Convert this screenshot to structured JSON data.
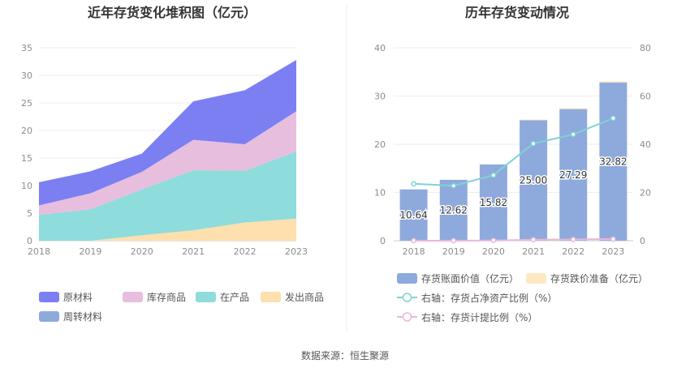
{
  "source": "数据来源：恒生聚源",
  "chart_data": [
    {
      "type": "area",
      "title": "近年存货变化堆积图（亿元）",
      "x": [
        "2018",
        "2019",
        "2020",
        "2021",
        "2022",
        "2023"
      ],
      "ylim": [
        0,
        35
      ],
      "yticks": [
        "0",
        "5",
        "10",
        "15",
        "20",
        "25",
        "30",
        "35"
      ],
      "stacked": true,
      "grid": true,
      "legend_position": "bottom",
      "series": [
        {
          "name": "原材料",
          "color": "#7b7ff2",
          "values": [
            4.2,
            4.0,
            3.3,
            7.0,
            9.8,
            9.3
          ]
        },
        {
          "name": "库存商品",
          "color": "#e8bede",
          "values": [
            1.7,
            2.9,
            3.2,
            5.5,
            4.8,
            7.3
          ]
        },
        {
          "name": "在产品",
          "color": "#8edcdc",
          "values": [
            4.7,
            5.7,
            8.3,
            10.9,
            9.4,
            12.2
          ]
        },
        {
          "name": "发出商品",
          "color": "#fde0ad",
          "values": [
            0,
            0,
            1.0,
            1.9,
            3.3,
            4.0
          ]
        },
        {
          "name": "周转材料",
          "color": "#8eaadc",
          "values": [
            0,
            0,
            0,
            0,
            0,
            0
          ]
        }
      ]
    },
    {
      "type": "bar",
      "title": "历年存货变动情况",
      "categories": [
        "2018",
        "2019",
        "2020",
        "2021",
        "2022",
        "2023"
      ],
      "ylim": [
        0,
        40
      ],
      "yticks": [
        "0",
        "10",
        "20",
        "30",
        "40"
      ],
      "y2lim": [
        0,
        80
      ],
      "y2ticks": [
        "0",
        "20",
        "40",
        "60",
        "80"
      ],
      "grid": true,
      "legend_position": "bottom",
      "series": [
        {
          "name": "存货账面价值（亿元）",
          "color": "#8eaadc",
          "values": [
            10.64,
            12.62,
            15.82,
            25.0,
            27.29,
            32.82
          ],
          "labels": [
            "10.64",
            "12.62",
            "15.82",
            "25.00",
            "27.29",
            "32.82"
          ]
        },
        {
          "name": "存货跌价准备（亿元）",
          "color": "#fde8c4",
          "values": [
            0,
            0,
            0,
            0.1,
            0.2,
            0.25
          ]
        },
        {
          "name": "右轴：存货占净资产比例（%）",
          "color": "#7fd3d6",
          "axis": "right",
          "type": "line",
          "values": [
            23.6,
            22.8,
            27.2,
            40.3,
            44.1,
            50.8
          ]
        },
        {
          "name": "右轴：存货计提比例（%）",
          "color": "#e6b8d8",
          "axis": "right",
          "type": "line",
          "values": [
            0,
            0,
            0.1,
            0.4,
            0.5,
            0.7
          ]
        }
      ]
    }
  ]
}
